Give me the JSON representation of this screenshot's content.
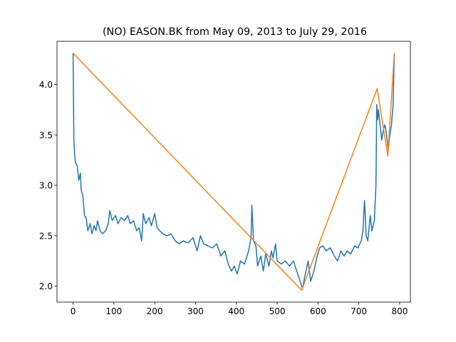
{
  "chart_data": {
    "type": "line",
    "title": "(NO) EASON.BK from May 09, 2013 to July 29, 2016",
    "series": [
      {
        "color": "#1f77b4",
        "x": [
          0,
          2,
          4,
          6,
          10,
          14,
          18,
          20,
          24,
          28,
          32,
          36,
          42,
          46,
          52,
          56,
          60,
          66,
          72,
          80,
          86,
          90,
          96,
          104,
          110,
          118,
          126,
          134,
          140,
          148,
          156,
          162,
          168,
          172,
          178,
          186,
          192,
          200,
          206,
          212,
          220,
          230,
          240,
          250,
          260,
          270,
          282,
          294,
          304,
          312,
          320,
          330,
          342,
          352,
          362,
          372,
          380,
          388,
          395,
          402,
          410,
          420,
          430,
          436,
          438,
          442,
          448,
          452,
          460,
          466,
          472,
          480,
          486,
          490,
          496,
          500,
          510,
          520,
          530,
          540,
          548,
          556,
          562,
          568,
          576,
          582,
          590,
          598,
          604,
          612,
          620,
          630,
          640,
          648,
          656,
          664,
          672,
          680,
          690,
          698,
          706,
          710,
          714,
          718,
          722,
          728,
          732,
          738,
          742,
          744,
          746,
          748,
          752,
          756,
          760,
          764,
          768,
          772,
          776,
          780,
          784,
          787
        ],
        "values": [
          4.31,
          3.45,
          3.3,
          3.22,
          3.2,
          3.05,
          3.12,
          2.95,
          2.9,
          2.7,
          2.68,
          2.55,
          2.62,
          2.52,
          2.6,
          2.55,
          2.65,
          2.55,
          2.52,
          2.55,
          2.62,
          2.75,
          2.65,
          2.7,
          2.62,
          2.68,
          2.65,
          2.7,
          2.62,
          2.65,
          2.55,
          2.58,
          2.45,
          2.72,
          2.62,
          2.68,
          2.6,
          2.72,
          2.58,
          2.55,
          2.52,
          2.5,
          2.52,
          2.45,
          2.42,
          2.45,
          2.43,
          2.48,
          2.35,
          2.5,
          2.42,
          2.4,
          2.38,
          2.42,
          2.3,
          2.35,
          2.22,
          2.15,
          2.2,
          2.12,
          2.25,
          2.22,
          2.35,
          2.48,
          2.8,
          2.45,
          2.4,
          2.2,
          2.3,
          2.15,
          2.32,
          2.2,
          2.35,
          2.28,
          2.42,
          2.25,
          2.22,
          2.25,
          2.2,
          2.25,
          2.15,
          2.05,
          1.98,
          2.1,
          2.25,
          2.05,
          2.15,
          2.3,
          2.38,
          2.4,
          2.35,
          2.38,
          2.3,
          2.25,
          2.35,
          2.3,
          2.35,
          2.32,
          2.4,
          2.38,
          2.45,
          2.55,
          2.85,
          2.5,
          2.45,
          2.7,
          2.55,
          2.65,
          3.0,
          3.8,
          3.65,
          3.75,
          3.6,
          3.45,
          3.55,
          3.6,
          3.5,
          3.35,
          3.5,
          3.6,
          3.8,
          4.31
        ]
      },
      {
        "color": "#ff7f0e",
        "x": [
          0,
          560,
          745,
          771,
          787
        ],
        "values": [
          4.31,
          1.96,
          3.96,
          3.29,
          4.31
        ]
      }
    ],
    "xlim": [
      -39.35,
      826.35
    ],
    "ylim": [
      1.8425,
      4.4275
    ],
    "xticks": [
      0,
      100,
      200,
      300,
      400,
      500,
      600,
      700,
      800
    ],
    "yticks": [
      {
        "value": 2.0,
        "label": "2.0"
      },
      2.5,
      {
        "value": 3.0,
        "label": "3.0"
      },
      3.5,
      {
        "value": 4.0,
        "label": "4.0"
      }
    ]
  }
}
